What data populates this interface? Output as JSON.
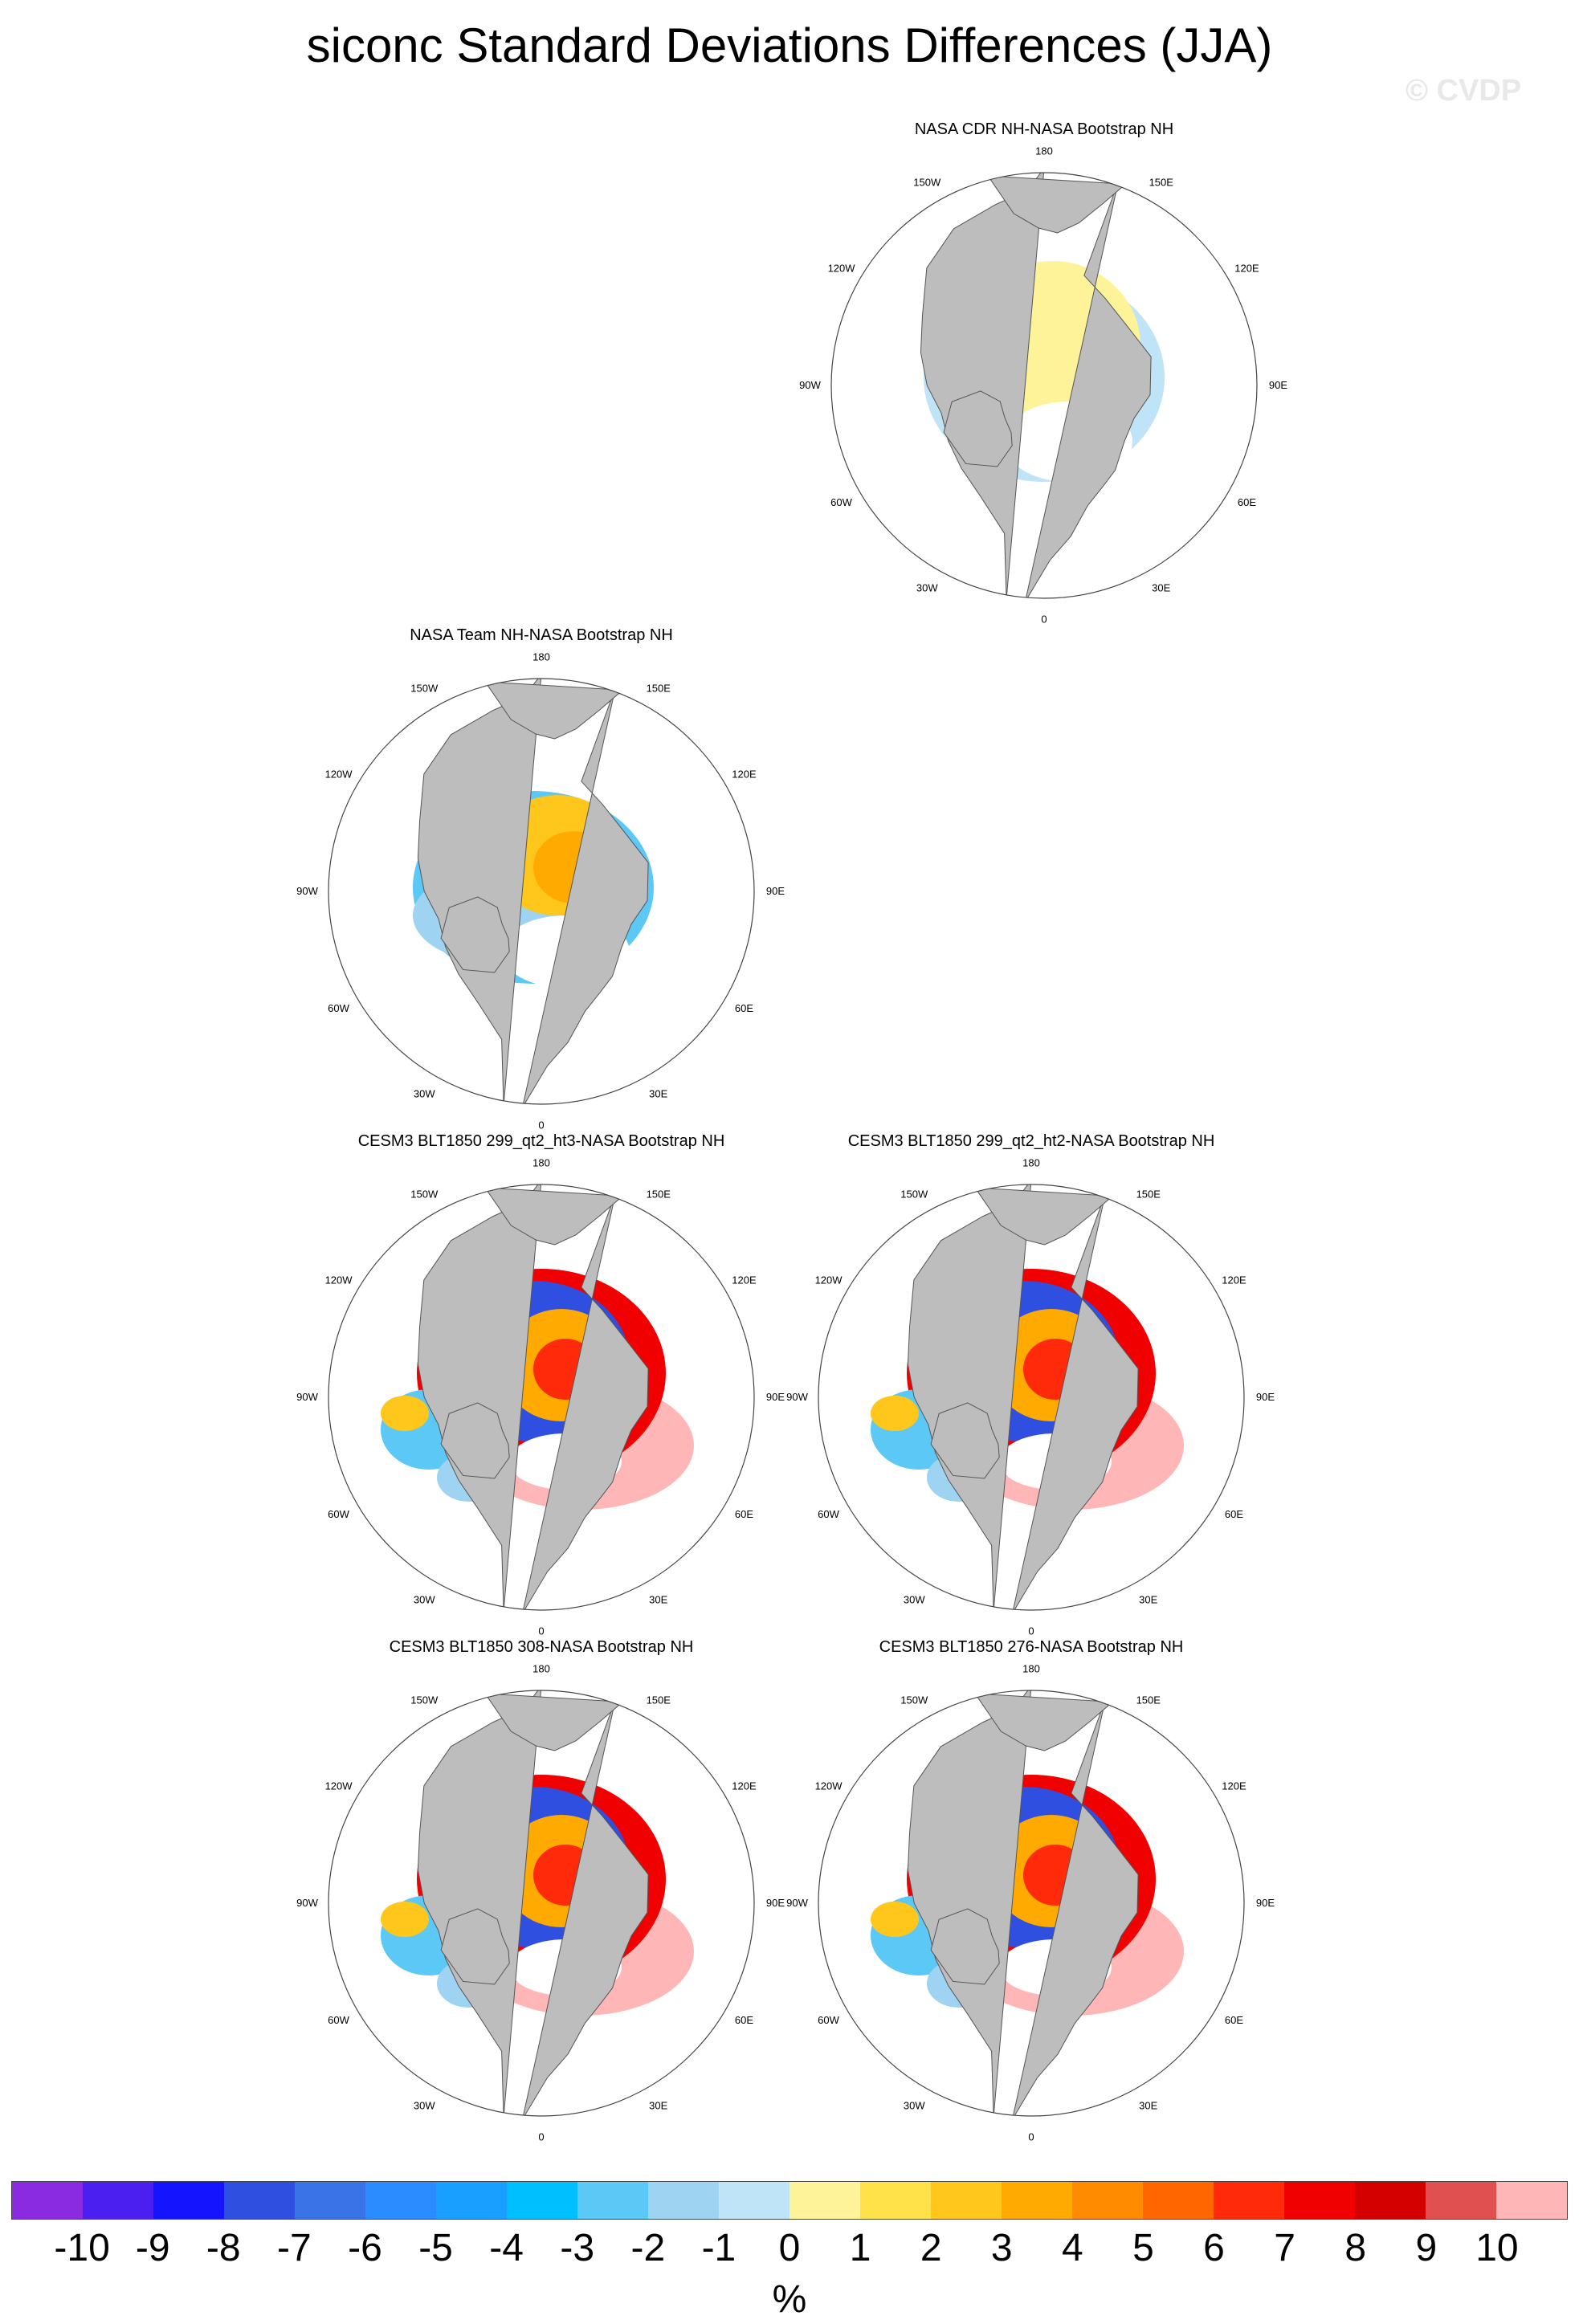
{
  "title": "siconc Standard Deviations Differences (JJA)",
  "watermark": "© CVDP",
  "lon_labels": {
    "180": "180",
    "150W": "150W",
    "150E": "150E",
    "120W": "120W",
    "120E": "120E",
    "90W": "90W",
    "90E": "90E",
    "60W": "60W",
    "60E": "60E",
    "30W": "30W",
    "30E": "30E",
    "0": "0"
  },
  "panels": [
    {
      "id": "p1",
      "title": "NASA CDR NH-NASA Bootstrap NH",
      "pattern": "cdr"
    },
    {
      "id": "p2",
      "title": "NASA Team NH-NASA Bootstrap NH",
      "pattern": "team"
    },
    {
      "id": "p3",
      "title": "CESM3 BLT1850 299_qt2_ht3-NASA Bootstrap NH",
      "pattern": "model"
    },
    {
      "id": "p4",
      "title": "CESM3 BLT1850 299_qt2_ht2-NASA Bootstrap NH",
      "pattern": "model"
    },
    {
      "id": "p5",
      "title": "CESM3 BLT1850 308-NASA Bootstrap NH",
      "pattern": "model"
    },
    {
      "id": "p6",
      "title": "CESM3 BLT1850 276-NASA Bootstrap NH",
      "pattern": "model"
    }
  ],
  "colorbar": {
    "colors": [
      "#8a2be2",
      "#4b1ff0",
      "#1414ff",
      "#2e4fe0",
      "#3a72e8",
      "#2b8cff",
      "#189fff",
      "#00bfff",
      "#5cc8f6",
      "#9ed3f1",
      "#bfe3f7",
      "#fff39a",
      "#ffe14a",
      "#ffc71c",
      "#ffaa00",
      "#ff8c00",
      "#ff6600",
      "#ff2a0a",
      "#f00000",
      "#d40000",
      "#e05050",
      "#ffb6b6"
    ],
    "labels": [
      "-10",
      "-9",
      "-8",
      "-7",
      "-6",
      "-5",
      "-4",
      "-3",
      "-2",
      "-1",
      "0",
      "1",
      "2",
      "3",
      "4",
      "5",
      "6",
      "7",
      "8",
      "9",
      "10"
    ],
    "units": "%"
  }
}
